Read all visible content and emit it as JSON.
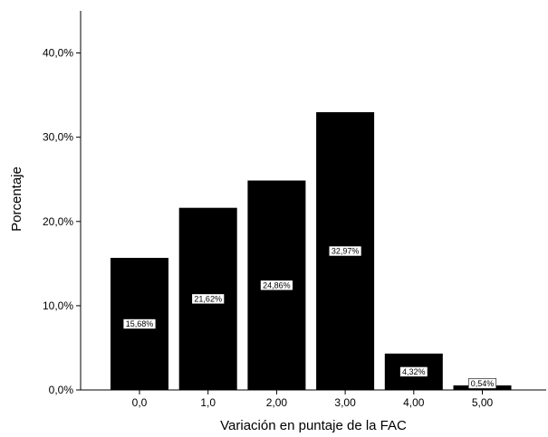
{
  "chart_data": {
    "type": "bar",
    "title": "",
    "xlabel": "Variación en puntaje de la FAC",
    "ylabel": "Porcentaje",
    "categories": [
      "0,0",
      "1,0",
      "2,00",
      "3,00",
      "4,00",
      "5,00"
    ],
    "values": [
      15.68,
      21.62,
      24.86,
      32.97,
      4.32,
      0.54
    ],
    "data_labels": [
      "15,68%",
      "21,62%",
      "24,86%",
      "32,97%",
      "4,32%",
      "0,54%"
    ],
    "ylim": [
      0,
      45
    ],
    "yticks": [
      0,
      10,
      20,
      30,
      40
    ],
    "ytick_labels": [
      "0,0%",
      "10,0%",
      "20,0%",
      "30,0%",
      "40,0%"
    ],
    "grid": false,
    "legend": "none",
    "colors": {
      "bar": "#000000",
      "background": "#ffffff",
      "axis": "#000000",
      "label_box": "#ffffff"
    }
  }
}
